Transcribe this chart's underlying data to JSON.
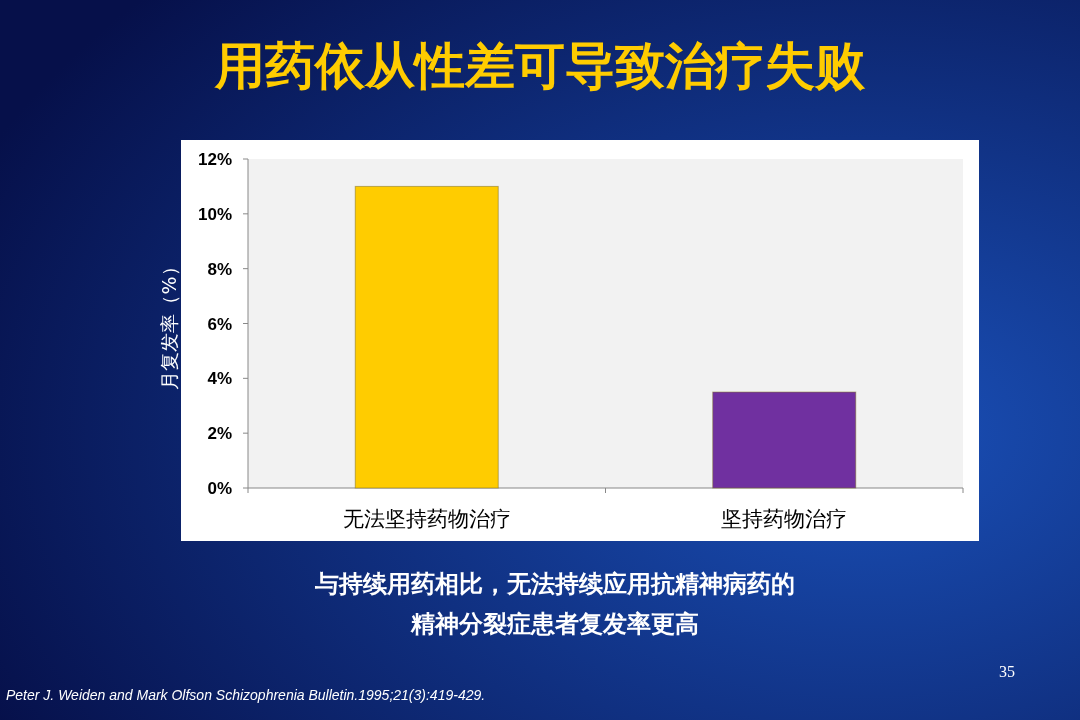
{
  "chart_data": {
    "type": "bar",
    "title": "用药依从性差可导致治疗失败",
    "ylabel": "月复发率（%）",
    "categories": [
      "无法坚持药物治疗",
      "坚持药物治疗"
    ],
    "values": [
      11,
      3.5
    ],
    "colors": [
      "#ffcc00",
      "#7030a0"
    ],
    "ylim": [
      0,
      12
    ],
    "yticks": [
      {
        "value": 0,
        "label": "0%"
      },
      {
        "value": 2,
        "label": "2%"
      },
      {
        "value": 4,
        "label": "4%"
      },
      {
        "value": 6,
        "label": "6%"
      },
      {
        "value": 8,
        "label": "8%"
      },
      {
        "value": 10,
        "label": "10%"
      },
      {
        "value": 12,
        "label": "12%"
      }
    ],
    "annotations": [
      "与持续用药相比，无法持续应用抗精神病药的",
      "精神分裂症患者复发率更高",
      "Peter J. Weiden and Mark Olfson Schizophrenia Bulletin.1995;21(3):419-429.",
      "35"
    ]
  }
}
